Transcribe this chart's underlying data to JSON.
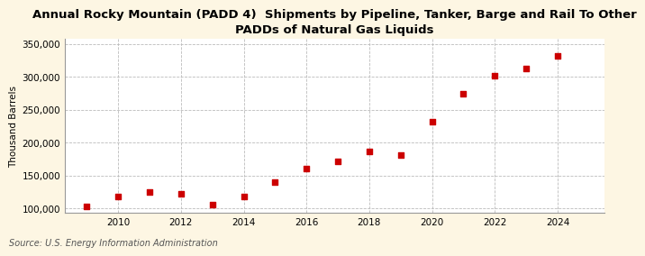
{
  "title": "Annual Rocky Mountain (PADD 4)  Shipments by Pipeline, Tanker, Barge and Rail To Other\nPADDs of Natural Gas Liquids",
  "ylabel": "Thousand Barrels",
  "source": "Source: U.S. Energy Information Administration",
  "years": [
    2009,
    2010,
    2011,
    2012,
    2013,
    2014,
    2015,
    2016,
    2017,
    2018,
    2019,
    2020,
    2021,
    2022,
    2023,
    2024
  ],
  "values": [
    103000,
    118000,
    125000,
    122000,
    106000,
    118000,
    140000,
    160000,
    172000,
    187000,
    181000,
    232000,
    274000,
    301000,
    312000,
    332000
  ],
  "marker_color": "#cc0000",
  "marker": "s",
  "marker_size": 4,
  "fig_bg_color": "#fdf6e3",
  "plot_bg_color": "#ffffff",
  "grid_color": "#bbbbbb",
  "ylim": [
    93000,
    357000
  ],
  "yticks": [
    100000,
    150000,
    200000,
    250000,
    300000,
    350000
  ],
  "xticks": [
    2010,
    2012,
    2014,
    2016,
    2018,
    2020,
    2022,
    2024
  ],
  "xlim": [
    2008.3,
    2025.5
  ],
  "title_fontsize": 9.5,
  "label_fontsize": 7.5,
  "tick_fontsize": 7.5,
  "source_fontsize": 7.0
}
